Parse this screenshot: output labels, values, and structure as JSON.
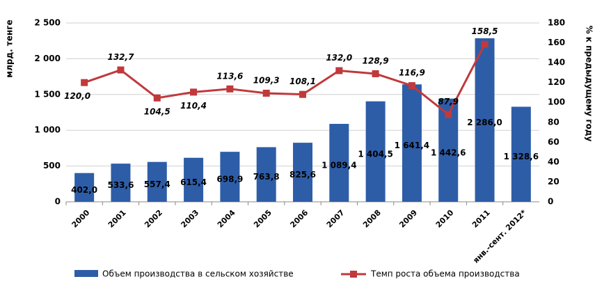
{
  "chart_data": {
    "type": "bar_line",
    "categories": [
      "2000",
      "2001",
      "2002",
      "2003",
      "2004",
      "2005",
      "2006",
      "2007",
      "2008",
      "2009",
      "2010",
      "2011",
      "янв.-сент. 2012*"
    ],
    "series": [
      {
        "name": "Объем производства в сельском хозяйстве",
        "color": "#2e5da8",
        "type": "bar",
        "values": [
          402.0,
          533.6,
          557.4,
          615.4,
          698.9,
          763.8,
          825.6,
          1089.4,
          1404.5,
          1641.4,
          1442.6,
          2286.0,
          1328.6
        ],
        "value_labels": [
          "402,0",
          "533,6",
          "557,4",
          "615,4",
          "698,9",
          "763,8",
          "825,6",
          "1 089,4",
          "1 404,5",
          "1 641,4",
          "1 442,6",
          "2 286,0",
          "1 328,6"
        ]
      },
      {
        "name": "Темп роста объема производства",
        "color": "#c0393b",
        "type": "line",
        "axis": "y2",
        "values": [
          120.0,
          132.7,
          104.5,
          110.4,
          113.6,
          109.3,
          108.1,
          132.0,
          128.9,
          116.9,
          87.9,
          158.5,
          null
        ],
        "value_labels": [
          "120,0",
          "132,7",
          "104,5",
          "110,4",
          "113,6",
          "109,3",
          "108,1",
          "132,0",
          "128,9",
          "116,9",
          "87,9",
          "158,5",
          null
        ]
      }
    ],
    "ylabel": "млрд. тенге",
    "y2label": "% к предыдущему году",
    "ylim": [
      0,
      2500
    ],
    "yticks": [
      0,
      500,
      {
        "value": 1000,
        "label": "1 000"
      },
      {
        "value": 1500,
        "label": "1 500"
      },
      {
        "value": 2000,
        "label": "2 000"
      },
      {
        "value": 2500,
        "label": "2 500"
      }
    ],
    "y2lim": [
      0,
      180
    ],
    "y2ticks": [
      0,
      20,
      40,
      60,
      80,
      100,
      120,
      140,
      160,
      180
    ],
    "grid": true,
    "legend": "bottom"
  }
}
